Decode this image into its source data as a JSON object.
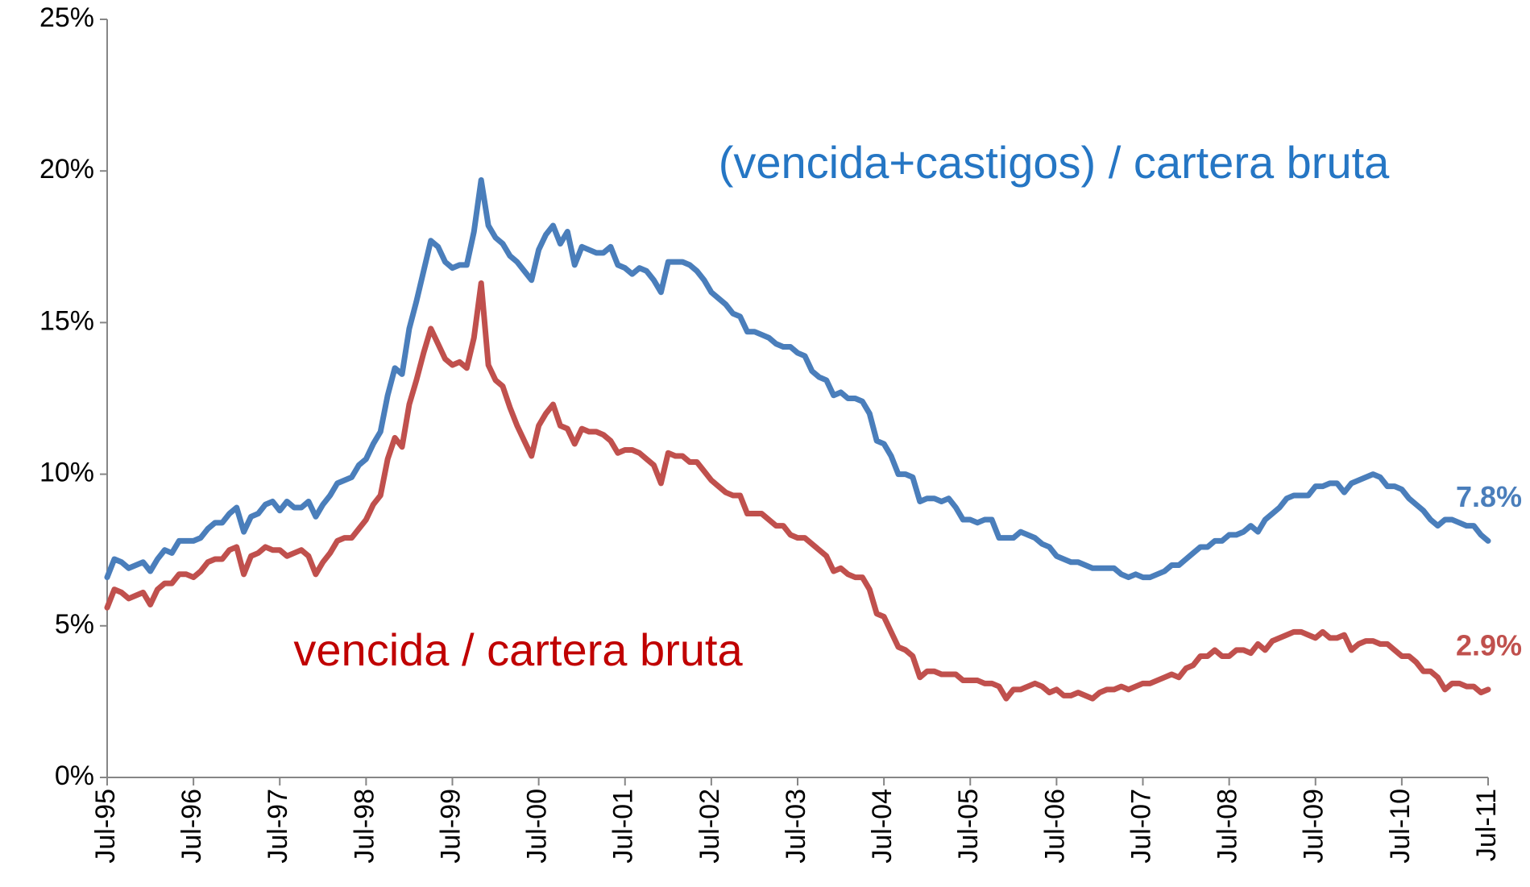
{
  "chart_data": {
    "type": "line",
    "categories": [
      "Jul-95",
      null,
      null,
      null,
      null,
      null,
      null,
      null,
      null,
      null,
      null,
      null,
      "Jul-96",
      null,
      null,
      null,
      null,
      null,
      null,
      null,
      null,
      null,
      null,
      null,
      "Jul-97",
      null,
      null,
      null,
      null,
      null,
      null,
      null,
      null,
      null,
      null,
      null,
      "Jul-98",
      null,
      null,
      null,
      null,
      null,
      null,
      null,
      null,
      null,
      null,
      null,
      "Jul-99",
      null,
      null,
      null,
      null,
      null,
      null,
      null,
      null,
      null,
      null,
      null,
      "Jul-00",
      null,
      null,
      null,
      null,
      null,
      null,
      null,
      null,
      null,
      null,
      null,
      "Jul-01",
      null,
      null,
      null,
      null,
      null,
      null,
      null,
      null,
      null,
      null,
      null,
      "Jul-02",
      null,
      null,
      null,
      null,
      null,
      null,
      null,
      null,
      null,
      null,
      null,
      "Jul-03",
      null,
      null,
      null,
      null,
      null,
      null,
      null,
      null,
      null,
      null,
      null,
      "Jul-04",
      null,
      null,
      null,
      null,
      null,
      null,
      null,
      null,
      null,
      null,
      null,
      "Jul-05",
      null,
      null,
      null,
      null,
      null,
      null,
      null,
      null,
      null,
      null,
      null,
      "Jul-06",
      null,
      null,
      null,
      null,
      null,
      null,
      null,
      null,
      null,
      null,
      null,
      "Jul-07",
      null,
      null,
      null,
      null,
      null,
      null,
      null,
      null,
      null,
      null,
      null,
      "Jul-08",
      null,
      null,
      null,
      null,
      null,
      null,
      null,
      null,
      null,
      null,
      null,
      "Jul-09",
      null,
      null,
      null,
      null,
      null,
      null,
      null,
      null,
      null,
      null,
      null,
      "Jul-10",
      null,
      null,
      null,
      null,
      null,
      null,
      null,
      null,
      null,
      null,
      null,
      "Jul-11"
    ],
    "series": [
      {
        "name": "(vencida+castigos) / cartera bruta",
        "color": "#4a7ebb",
        "label_color": "#2576c4",
        "values": [
          6.6,
          7.2,
          7.1,
          6.9,
          7.0,
          7.1,
          6.8,
          7.2,
          7.5,
          7.4,
          7.8,
          7.8,
          7.8,
          7.9,
          8.2,
          8.4,
          8.4,
          8.7,
          8.9,
          8.1,
          8.6,
          8.7,
          9.0,
          9.1,
          8.8,
          9.1,
          8.9,
          8.9,
          9.1,
          8.6,
          9.0,
          9.3,
          9.7,
          9.8,
          9.9,
          10.3,
          10.5,
          11.0,
          11.4,
          12.6,
          13.5,
          13.3,
          14.8,
          15.7,
          16.7,
          17.7,
          17.5,
          17.0,
          16.8,
          16.9,
          16.9,
          18.0,
          19.7,
          18.2,
          17.8,
          17.6,
          17.2,
          17.0,
          16.7,
          16.4,
          17.4,
          17.9,
          18.2,
          17.6,
          18.0,
          16.9,
          17.5,
          17.4,
          17.3,
          17.3,
          17.5,
          16.9,
          16.8,
          16.6,
          16.8,
          16.7,
          16.4,
          16.0,
          17.0,
          17.0,
          17.0,
          16.9,
          16.7,
          16.4,
          16.0,
          15.8,
          15.6,
          15.3,
          15.2,
          14.7,
          14.7,
          14.6,
          14.5,
          14.3,
          14.2,
          14.2,
          14.0,
          13.9,
          13.4,
          13.2,
          13.1,
          12.6,
          12.7,
          12.5,
          12.5,
          12.4,
          12.0,
          11.1,
          11.0,
          10.6,
          10.0,
          10.0,
          9.9,
          9.1,
          9.2,
          9.2,
          9.1,
          9.2,
          8.9,
          8.5,
          8.5,
          8.4,
          8.5,
          8.5,
          7.9,
          7.9,
          7.9,
          8.1,
          8.0,
          7.9,
          7.7,
          7.6,
          7.3,
          7.2,
          7.1,
          7.1,
          7.0,
          6.9,
          6.9,
          6.9,
          6.9,
          6.7,
          6.6,
          6.7,
          6.6,
          6.6,
          6.7,
          6.8,
          7.0,
          7.0,
          7.2,
          7.4,
          7.6,
          7.6,
          7.8,
          7.8,
          8.0,
          8.0,
          8.1,
          8.3,
          8.1,
          8.5,
          8.7,
          8.9,
          9.2,
          9.3,
          9.3,
          9.3,
          9.6,
          9.6,
          9.7,
          9.7,
          9.4,
          9.7,
          9.8,
          9.9,
          10.0,
          9.9,
          9.6,
          9.6,
          9.5,
          9.2,
          9.0,
          8.8,
          8.5,
          8.3,
          8.5,
          8.5,
          8.4,
          8.3,
          8.3,
          8.0,
          7.8
        ],
        "value_labels": [
          null,
          null,
          null,
          null,
          null,
          null,
          null,
          null,
          null,
          null,
          null,
          null,
          null,
          null,
          null,
          null,
          null,
          null,
          null,
          null,
          null,
          null,
          null,
          null,
          null,
          null,
          null,
          null,
          null,
          null,
          null,
          null,
          null,
          null,
          null,
          null,
          null,
          null,
          null,
          null,
          null,
          null,
          null,
          null,
          null,
          null,
          null,
          null,
          null,
          null,
          null,
          null,
          null,
          null,
          null,
          null,
          null,
          null,
          null,
          null,
          null,
          null,
          null,
          null,
          null,
          null,
          null,
          null,
          null,
          null,
          null,
          null,
          null,
          null,
          null,
          null,
          null,
          null,
          null,
          null,
          null,
          null,
          null,
          null,
          null,
          null,
          null,
          null,
          null,
          null,
          null,
          null,
          null,
          null,
          null,
          null,
          null,
          null,
          null,
          null,
          null,
          null,
          null,
          null,
          null,
          null,
          null,
          null,
          null,
          null,
          null,
          null,
          null,
          null,
          null,
          null,
          null,
          null,
          null,
          null,
          null,
          null,
          null,
          null,
          null,
          null,
          null,
          null,
          null,
          null,
          null,
          null,
          null,
          null,
          null,
          null,
          null,
          null,
          null,
          null,
          null,
          null,
          null,
          null,
          null,
          null,
          null,
          null,
          null,
          null,
          null,
          null,
          null,
          null,
          null,
          null,
          null,
          null,
          null,
          null,
          null,
          null,
          null,
          null,
          null,
          null,
          null,
          null,
          null,
          null,
          null,
          null,
          null,
          null,
          null,
          null,
          null,
          null,
          null,
          null,
          null,
          null,
          null,
          null,
          null,
          null,
          null,
          null,
          null,
          null,
          null,
          null,
          "7.8%"
        ]
      },
      {
        "name": "vencida / cartera bruta",
        "color": "#c0504d",
        "label_color": "#c00000",
        "values": [
          5.6,
          6.2,
          6.1,
          5.9,
          6.0,
          6.1,
          5.7,
          6.2,
          6.4,
          6.4,
          6.7,
          6.7,
          6.6,
          6.8,
          7.1,
          7.2,
          7.2,
          7.5,
          7.6,
          6.7,
          7.3,
          7.4,
          7.6,
          7.5,
          7.5,
          7.3,
          7.4,
          7.5,
          7.3,
          6.7,
          7.1,
          7.4,
          7.8,
          7.9,
          7.9,
          8.2,
          8.5,
          9.0,
          9.3,
          10.5,
          11.2,
          10.9,
          12.3,
          13.1,
          14.0,
          14.8,
          14.3,
          13.8,
          13.6,
          13.7,
          13.5,
          14.5,
          16.3,
          13.6,
          13.1,
          12.9,
          12.2,
          11.6,
          11.1,
          10.6,
          11.6,
          12.0,
          12.3,
          11.6,
          11.5,
          11.0,
          11.5,
          11.4,
          11.4,
          11.3,
          11.1,
          10.7,
          10.8,
          10.8,
          10.7,
          10.5,
          10.3,
          9.7,
          10.7,
          10.6,
          10.6,
          10.4,
          10.4,
          10.1,
          9.8,
          9.6,
          9.4,
          9.3,
          9.3,
          8.7,
          8.7,
          8.7,
          8.5,
          8.3,
          8.3,
          8.0,
          7.9,
          7.9,
          7.7,
          7.5,
          7.3,
          6.8,
          6.9,
          6.7,
          6.6,
          6.6,
          6.2,
          5.4,
          5.3,
          4.8,
          4.3,
          4.2,
          4.0,
          3.3,
          3.5,
          3.5,
          3.4,
          3.4,
          3.4,
          3.2,
          3.2,
          3.2,
          3.1,
          3.1,
          3.0,
          2.6,
          2.9,
          2.9,
          3.0,
          3.1,
          3.0,
          2.8,
          2.9,
          2.7,
          2.7,
          2.8,
          2.7,
          2.6,
          2.8,
          2.9,
          2.9,
          3.0,
          2.9,
          3.0,
          3.1,
          3.1,
          3.2,
          3.3,
          3.4,
          3.3,
          3.6,
          3.7,
          4.0,
          4.0,
          4.2,
          4.0,
          4.0,
          4.2,
          4.2,
          4.1,
          4.4,
          4.2,
          4.5,
          4.6,
          4.7,
          4.8,
          4.8,
          4.7,
          4.6,
          4.8,
          4.6,
          4.6,
          4.7,
          4.2,
          4.4,
          4.5,
          4.5,
          4.4,
          4.4,
          4.2,
          4.0,
          4.0,
          3.8,
          3.5,
          3.5,
          3.3,
          2.9,
          3.1,
          3.1,
          3.0,
          3.0,
          2.8,
          2.9
        ],
        "value_labels": [
          null,
          null,
          null,
          null,
          null,
          null,
          null,
          null,
          null,
          null,
          null,
          null,
          null,
          null,
          null,
          null,
          null,
          null,
          null,
          null,
          null,
          null,
          null,
          null,
          null,
          null,
          null,
          null,
          null,
          null,
          null,
          null,
          null,
          null,
          null,
          null,
          null,
          null,
          null,
          null,
          null,
          null,
          null,
          null,
          null,
          null,
          null,
          null,
          null,
          null,
          null,
          null,
          null,
          null,
          null,
          null,
          null,
          null,
          null,
          null,
          null,
          null,
          null,
          null,
          null,
          null,
          null,
          null,
          null,
          null,
          null,
          null,
          null,
          null,
          null,
          null,
          null,
          null,
          null,
          null,
          null,
          null,
          null,
          null,
          null,
          null,
          null,
          null,
          null,
          null,
          null,
          null,
          null,
          null,
          null,
          null,
          null,
          null,
          null,
          null,
          null,
          null,
          null,
          null,
          null,
          null,
          null,
          null,
          null,
          null,
          null,
          null,
          null,
          null,
          null,
          null,
          null,
          null,
          null,
          null,
          null,
          null,
          null,
          null,
          null,
          null,
          null,
          null,
          null,
          null,
          null,
          null,
          null,
          null,
          null,
          null,
          null,
          null,
          null,
          null,
          null,
          null,
          null,
          null,
          null,
          null,
          null,
          null,
          null,
          null,
          null,
          null,
          null,
          null,
          null,
          null,
          null,
          null,
          null,
          null,
          null,
          null,
          null,
          null,
          null,
          null,
          null,
          null,
          null,
          null,
          null,
          null,
          null,
          null,
          null,
          null,
          null,
          null,
          null,
          null,
          null,
          null,
          null,
          null,
          null,
          null,
          null,
          null,
          null,
          null,
          null,
          null,
          "2.9%"
        ]
      }
    ],
    "ylim": [
      0,
      25
    ],
    "yticks": [
      {
        "value": 0,
        "label": "0%"
      },
      {
        "value": 5,
        "label": "5%"
      },
      {
        "value": 10,
        "label": "10%"
      },
      {
        "value": 15,
        "label": "15%"
      },
      {
        "value": 20,
        "label": "20%"
      },
      {
        "value": 25,
        "label": "25%"
      }
    ],
    "grid": false
  }
}
